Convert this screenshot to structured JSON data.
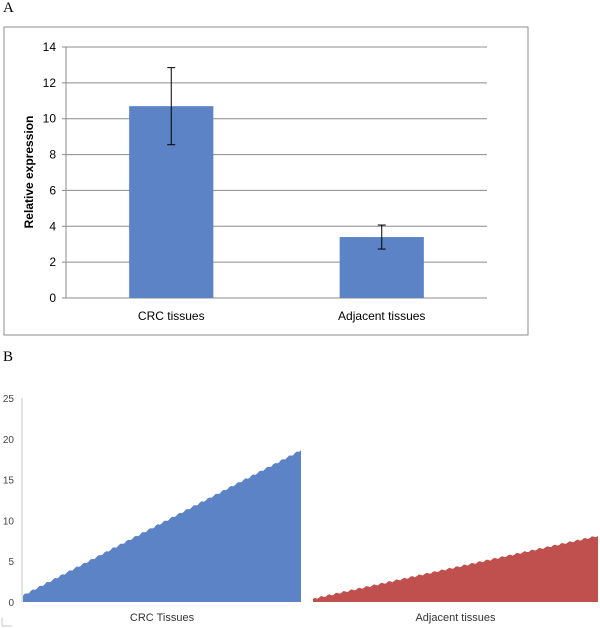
{
  "panels": {
    "a_label": "A",
    "b_label": "B"
  },
  "chart_data": [
    {
      "type": "bar",
      "panel": "A",
      "title": "",
      "xlabel": "",
      "ylabel": "Relative expression",
      "categories": [
        "CRC tissues",
        "Adjacent tissues"
      ],
      "values": [
        10.7,
        3.4
      ],
      "error": [
        2.15,
        0.67
      ],
      "ylim": [
        0,
        14
      ],
      "yticks": [
        0,
        2,
        4,
        6,
        8,
        10,
        12,
        14
      ],
      "grid": true,
      "colors": {
        "bar": "#5b83c5",
        "grid": "#8c8c8c",
        "frame": "#8c8c8c"
      }
    },
    {
      "type": "area",
      "panel": "B",
      "title": "",
      "xlabel": "",
      "ylabel": "",
      "ylim": [
        0,
        25
      ],
      "yticks": [
        0,
        5,
        10,
        15,
        20,
        25
      ],
      "grid": false,
      "series": [
        {
          "category": "CRC Tissues",
          "start": 0.8,
          "end": 18.6,
          "color": "#5b83c5"
        },
        {
          "category": "Adjacent tissues",
          "start": 0.4,
          "end": 8.1,
          "color": "#c0504d"
        }
      ]
    }
  ]
}
